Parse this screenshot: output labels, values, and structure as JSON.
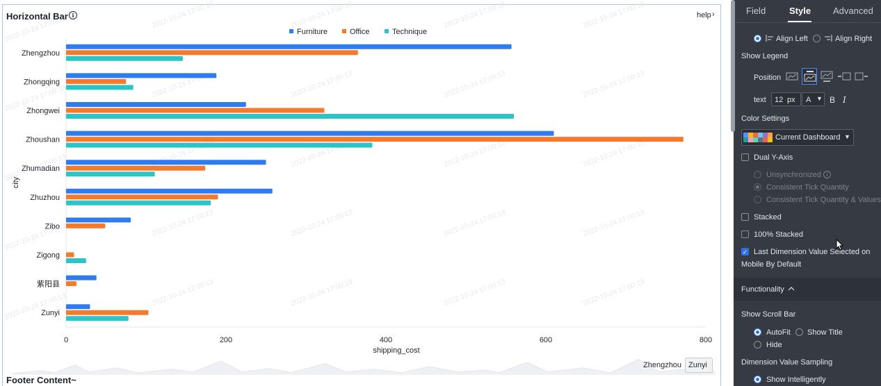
{
  "card": {
    "title": "Horizontal Bar",
    "help": "help",
    "footer": "Footer Content~",
    "watermark": "2022-10-24 17:00:13"
  },
  "brush": {
    "start_label": "Zhengzhou",
    "end_label": "Zunyi"
  },
  "chart_data": {
    "type": "bar",
    "orientation": "horizontal",
    "ylabel": "city",
    "xlabel": "shipping_cost",
    "xlim": [
      0,
      800
    ],
    "xticks": [
      "0",
      "200",
      "400",
      "600",
      "800"
    ],
    "categories": [
      "Zhengzhou",
      "Zhongqing",
      "Zhongwei",
      "Zhoushan",
      "Zhumadian",
      "Zhuzhou",
      "Zibo",
      "Zigong",
      "紫阳县",
      "Zunyi"
    ],
    "series": [
      {
        "name": "Furniture",
        "color": "#2f7bf0",
        "values": [
          557,
          188,
          225,
          610,
          250,
          258,
          81,
          0,
          38,
          30
        ]
      },
      {
        "name": "Office",
        "color": "#f57a2c",
        "values": [
          365,
          75,
          323,
          772,
          174,
          190,
          49,
          10,
          13,
          103
        ]
      },
      {
        "name": "Technique",
        "color": "#2bc4c7",
        "values": [
          146,
          84,
          560,
          383,
          111,
          181,
          0,
          25,
          0,
          78
        ]
      }
    ],
    "legend_position": "top-center",
    "grid": false
  },
  "panel": {
    "tabs": [
      "Field",
      "Style",
      "Advanced"
    ],
    "active_tab": "Style",
    "alignment": {
      "left": "Align Left",
      "right": "Align Right"
    },
    "show_legend": "Show Legend",
    "position_label": "Position",
    "text_label": "text",
    "font_size": "12",
    "font_unit": "px",
    "font_color": "A",
    "bold": "B",
    "italic": "I",
    "color_settings": "Color Settings",
    "color_scheme": "Current Dashboard",
    "swatches": [
      "#5b8ff9",
      "#f6bd16",
      "#e8684a",
      "#6dc8ec",
      "#9270ca",
      "#ff9d4d",
      "#269a99",
      "#ff99c3",
      "#5ad8a6",
      "#5d7092",
      "#e86452",
      "#f6c022"
    ],
    "dual_y_axis": "Dual Y-Axis",
    "unsynchronized": "Unsynchronized",
    "consistent_tick_quantity": "Consistent Tick Quantity",
    "consistent_tick_values": "Consistent Tick Quantity & Values",
    "stacked": "Stacked",
    "stacked_100": "100% Stacked",
    "last_dim_line1": "Last Dimension Value Selected on",
    "last_dim_line2": "Mobile By Default",
    "functionality": "Functionality",
    "show_scroll_bar": "Show Scroll Bar",
    "autofit": "AutoFit",
    "show_title": "Show Title",
    "hide": "Hide",
    "dimension_sampling": "Dimension Value Sampling",
    "show_intelligently": "Show Intelligently"
  }
}
